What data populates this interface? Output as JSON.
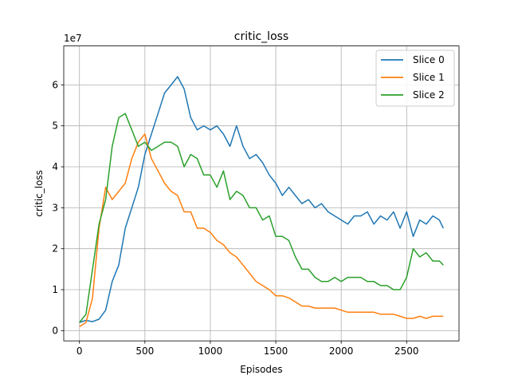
{
  "chart_data": {
    "type": "line",
    "title": "critic_loss",
    "xlabel": "Episodes",
    "ylabel": "critic_loss",
    "y_scale_label": "1e7",
    "xlim": [
      -120,
      2900
    ],
    "ylim": [
      -0.25,
      6.95
    ],
    "xticks": [
      0,
      500,
      1000,
      1500,
      2000,
      2500
    ],
    "xtick_labels": [
      "0",
      "500",
      "1000",
      "1500",
      "2000",
      "2500"
    ],
    "yticks": [
      0,
      1,
      2,
      3,
      4,
      5,
      6
    ],
    "ytick_labels": [
      "0",
      "1",
      "2",
      "3",
      "4",
      "5",
      "6"
    ],
    "grid": true,
    "legend_position": "top-right",
    "colors": {
      "slice0": "#1f77b4",
      "slice1": "#ff7f0e",
      "slice2": "#2ca02c"
    },
    "series": [
      {
        "name": "Slice 0",
        "x": [
          0,
          50,
          100,
          150,
          200,
          250,
          300,
          350,
          400,
          450,
          500,
          550,
          600,
          650,
          700,
          750,
          800,
          850,
          900,
          950,
          1000,
          1050,
          1100,
          1150,
          1200,
          1250,
          1300,
          1350,
          1400,
          1450,
          1500,
          1550,
          1600,
          1650,
          1700,
          1750,
          1800,
          1850,
          1900,
          1950,
          2000,
          2050,
          2100,
          2150,
          2200,
          2250,
          2300,
          2350,
          2400,
          2450,
          2500,
          2550,
          2600,
          2650,
          2700,
          2750,
          2780
        ],
        "y": [
          0.2,
          0.25,
          0.22,
          0.28,
          0.5,
          1.2,
          1.6,
          2.5,
          3.0,
          3.5,
          4.3,
          4.8,
          5.3,
          5.8,
          6.0,
          6.2,
          5.9,
          5.2,
          4.9,
          5.0,
          4.9,
          5.0,
          4.8,
          4.5,
          5.0,
          4.5,
          4.2,
          4.3,
          4.1,
          3.8,
          3.6,
          3.3,
          3.5,
          3.3,
          3.1,
          3.2,
          3.0,
          3.1,
          2.9,
          2.8,
          2.7,
          2.6,
          2.8,
          2.8,
          2.9,
          2.6,
          2.8,
          2.7,
          2.9,
          2.5,
          2.9,
          2.3,
          2.7,
          2.6,
          2.8,
          2.7,
          2.5
        ]
      },
      {
        "name": "Slice 1",
        "x": [
          0,
          50,
          100,
          150,
          200,
          250,
          300,
          350,
          400,
          450,
          500,
          550,
          600,
          650,
          700,
          750,
          800,
          850,
          900,
          950,
          1000,
          1050,
          1100,
          1150,
          1200,
          1250,
          1300,
          1350,
          1400,
          1450,
          1500,
          1550,
          1600,
          1650,
          1700,
          1750,
          1800,
          1850,
          1900,
          1950,
          2000,
          2050,
          2100,
          2150,
          2200,
          2250,
          2300,
          2350,
          2400,
          2450,
          2500,
          2550,
          2600,
          2650,
          2700,
          2750,
          2780
        ],
        "y": [
          0.1,
          0.2,
          0.8,
          2.5,
          3.5,
          3.2,
          3.4,
          3.6,
          4.2,
          4.6,
          4.8,
          4.2,
          3.9,
          3.6,
          3.4,
          3.3,
          2.9,
          2.9,
          2.5,
          2.5,
          2.4,
          2.2,
          2.1,
          1.9,
          1.8,
          1.6,
          1.4,
          1.2,
          1.1,
          1.0,
          0.85,
          0.85,
          0.8,
          0.7,
          0.6,
          0.6,
          0.55,
          0.55,
          0.55,
          0.55,
          0.5,
          0.45,
          0.45,
          0.45,
          0.45,
          0.45,
          0.4,
          0.4,
          0.4,
          0.35,
          0.3,
          0.3,
          0.35,
          0.3,
          0.35,
          0.35,
          0.35
        ]
      },
      {
        "name": "Slice 2",
        "x": [
          0,
          50,
          100,
          150,
          200,
          250,
          300,
          350,
          400,
          450,
          500,
          550,
          600,
          650,
          700,
          750,
          800,
          850,
          900,
          950,
          1000,
          1050,
          1100,
          1150,
          1200,
          1250,
          1300,
          1350,
          1400,
          1450,
          1500,
          1550,
          1600,
          1650,
          1700,
          1750,
          1800,
          1850,
          1900,
          1950,
          2000,
          2050,
          2100,
          2150,
          2200,
          2250,
          2300,
          2350,
          2400,
          2450,
          2500,
          2550,
          2600,
          2650,
          2700,
          2750,
          2780
        ],
        "y": [
          0.2,
          0.4,
          1.5,
          2.6,
          3.2,
          4.5,
          5.2,
          5.3,
          4.9,
          4.5,
          4.6,
          4.4,
          4.5,
          4.6,
          4.6,
          4.5,
          4.0,
          4.3,
          4.2,
          3.8,
          3.8,
          3.5,
          3.9,
          3.2,
          3.4,
          3.3,
          3.0,
          3.0,
          2.7,
          2.8,
          2.3,
          2.3,
          2.2,
          1.8,
          1.5,
          1.5,
          1.3,
          1.2,
          1.2,
          1.3,
          1.2,
          1.3,
          1.3,
          1.3,
          1.2,
          1.2,
          1.1,
          1.1,
          1.0,
          1.0,
          1.3,
          2.0,
          1.8,
          1.9,
          1.7,
          1.7,
          1.6
        ]
      }
    ]
  }
}
